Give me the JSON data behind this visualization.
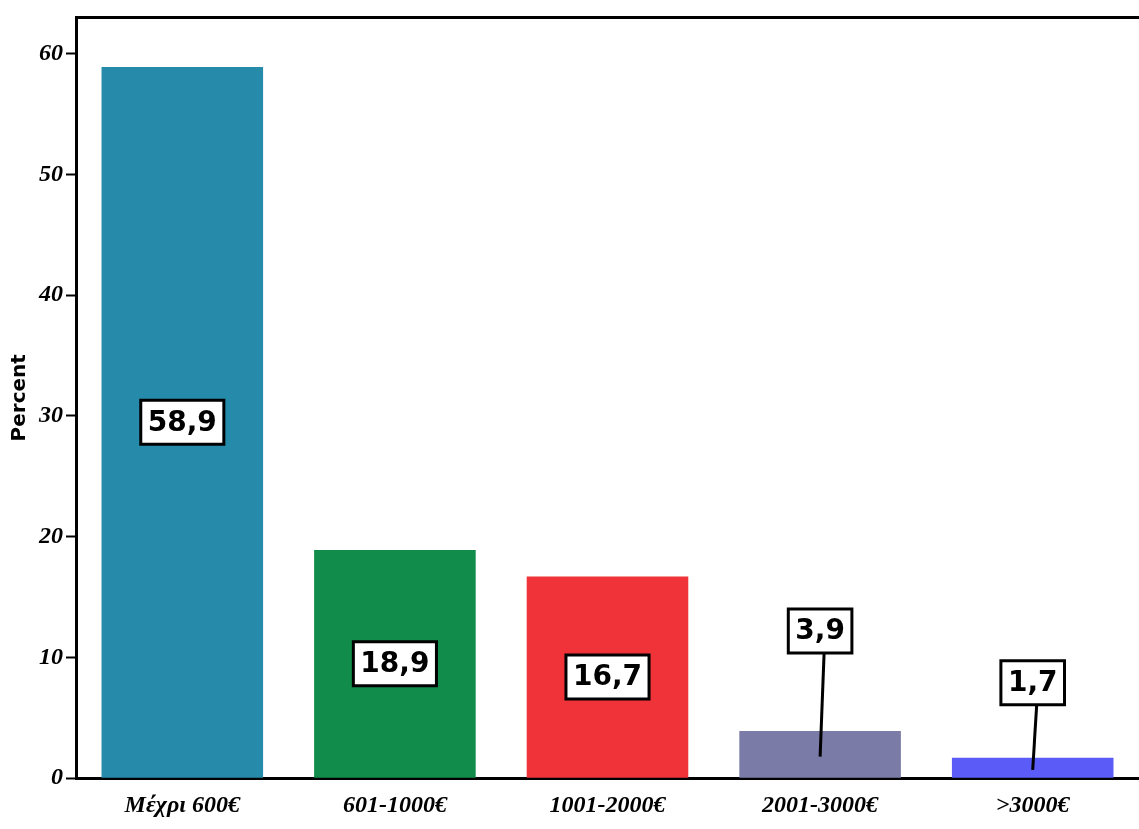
{
  "chart_data": {
    "type": "bar",
    "ylabel": "Percent",
    "categories": [
      "Μέχρι 600€",
      "601-1000€",
      "1001-2000€",
      "2001-3000€",
      ">3000€"
    ],
    "values": [
      58.9,
      18.9,
      16.7,
      3.9,
      1.7
    ],
    "value_labels": [
      "58,9",
      "18,9",
      "16,7",
      "3,9",
      "1,7"
    ],
    "colors": [
      "#268bab",
      "#118c4a",
      "#ef3338",
      "#7b7ba8",
      "#5b5bf8"
    ],
    "ylim": [
      0,
      63
    ],
    "yticks": [
      0,
      10,
      20,
      30,
      40,
      50,
      60
    ],
    "grid": false,
    "legend": false
  }
}
